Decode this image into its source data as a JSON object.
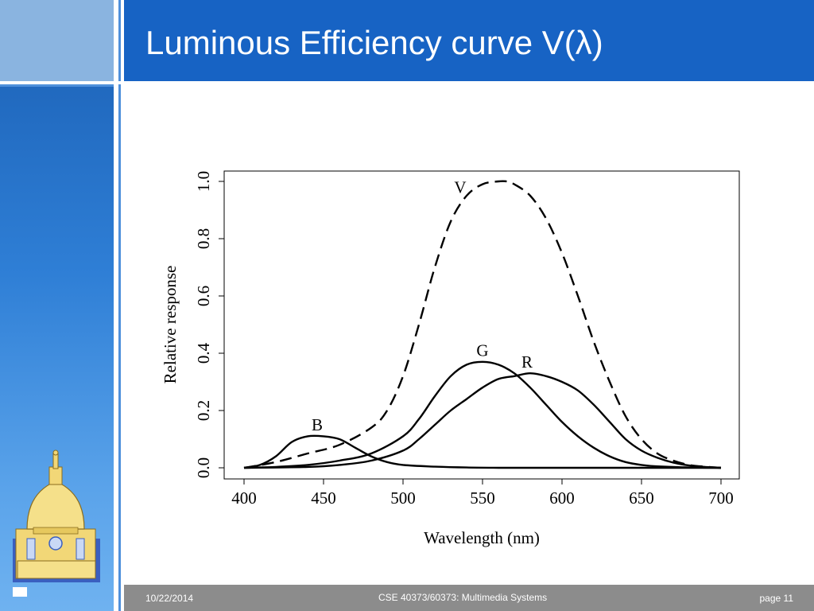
{
  "slide": {
    "title": "Luminous Efficiency curve V(λ)",
    "footer": {
      "date": "10/22/2014",
      "course": "CSE 40373/60373: Multimedia Systems",
      "page": "page 11"
    },
    "colors": {
      "title_bar": "#1763c4",
      "rail": "#2f7fd6",
      "footer": "#8c8c8c"
    },
    "logo_icon": "golden-dome-icon"
  },
  "chart_data": {
    "type": "line",
    "title": "",
    "xlabel": "Wavelength (nm)",
    "ylabel": "Relative response",
    "xlim": [
      400,
      700
    ],
    "ylim": [
      0.0,
      1.0
    ],
    "x_ticks": [
      "400",
      "450",
      "500",
      "550",
      "600",
      "650",
      "700"
    ],
    "y_ticks": [
      "0.0",
      "0.2",
      "0.4",
      "0.6",
      "0.8",
      "1.0"
    ],
    "grid": false,
    "legend": "none",
    "series": [
      {
        "name": "V",
        "style": "dashed",
        "x": [
          400,
          420,
          440,
          460,
          480,
          490,
          500,
          510,
          520,
          530,
          540,
          550,
          560,
          565,
          570,
          580,
          590,
          600,
          610,
          620,
          630,
          640,
          650,
          660,
          670,
          680,
          690,
          700
        ],
        "y": [
          0.0,
          0.02,
          0.05,
          0.08,
          0.14,
          0.2,
          0.32,
          0.5,
          0.7,
          0.86,
          0.95,
          0.99,
          1.0,
          1.0,
          0.99,
          0.95,
          0.87,
          0.75,
          0.6,
          0.44,
          0.3,
          0.18,
          0.1,
          0.05,
          0.025,
          0.01,
          0.004,
          0.0
        ]
      },
      {
        "name": "G",
        "style": "solid",
        "x": [
          400,
          420,
          440,
          460,
          480,
          500,
          510,
          520,
          530,
          540,
          550,
          560,
          570,
          580,
          590,
          600,
          610,
          620,
          630,
          640,
          650,
          660,
          680,
          700
        ],
        "y": [
          0.0,
          0.003,
          0.01,
          0.025,
          0.05,
          0.11,
          0.17,
          0.25,
          0.32,
          0.36,
          0.37,
          0.36,
          0.33,
          0.28,
          0.22,
          0.16,
          0.11,
          0.07,
          0.04,
          0.02,
          0.01,
          0.005,
          0.001,
          0.0
        ]
      },
      {
        "name": "R",
        "style": "solid",
        "x": [
          400,
          440,
          460,
          480,
          500,
          510,
          520,
          530,
          540,
          550,
          560,
          570,
          580,
          590,
          600,
          610,
          620,
          630,
          640,
          650,
          660,
          670,
          680,
          690,
          700
        ],
        "y": [
          0.0,
          0.003,
          0.01,
          0.025,
          0.06,
          0.1,
          0.15,
          0.2,
          0.24,
          0.28,
          0.31,
          0.32,
          0.33,
          0.32,
          0.3,
          0.27,
          0.22,
          0.16,
          0.1,
          0.06,
          0.035,
          0.018,
          0.008,
          0.003,
          0.0
        ]
      },
      {
        "name": "B",
        "style": "solid",
        "x": [
          400,
          410,
          420,
          430,
          440,
          450,
          460,
          470,
          480,
          490,
          500,
          520,
          540,
          560,
          600,
          650,
          700
        ],
        "y": [
          0.0,
          0.01,
          0.04,
          0.09,
          0.11,
          0.11,
          0.1,
          0.07,
          0.04,
          0.02,
          0.01,
          0.004,
          0.001,
          0.0,
          0.0,
          0.0,
          0.0
        ]
      }
    ],
    "annotations": [
      {
        "text": "V",
        "x": 536,
        "y": 0.96
      },
      {
        "text": "G",
        "x": 550,
        "y": 0.39
      },
      {
        "text": "R",
        "x": 578,
        "y": 0.35
      },
      {
        "text": "B",
        "x": 446,
        "y": 0.13
      }
    ]
  }
}
